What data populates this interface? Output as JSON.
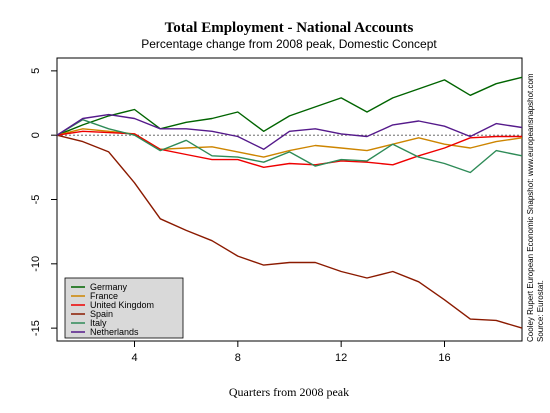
{
  "chart_data": {
    "type": "line",
    "title": "Total Employment - National Accounts",
    "subtitle": "Percentage change from 2008 peak, Domestic Concept",
    "xlabel": "Quarters from 2008 peak",
    "ylabel": "",
    "xlim": [
      1,
      19
    ],
    "ylim": [
      -16,
      6
    ],
    "x_ticks": [
      4,
      8,
      12,
      16
    ],
    "y_ticks": [
      5,
      0,
      -5,
      -10,
      -15
    ],
    "x": [
      1,
      2,
      3,
      4,
      5,
      6,
      7,
      8,
      9,
      10,
      11,
      12,
      13,
      14,
      15,
      16,
      17,
      18,
      19
    ],
    "zero_line": true,
    "legend_position": "bottom-left",
    "side_note": "Cooley Rupert European Economic Snapshot: www.europeansnapshot.com",
    "source_note": "Source: Eurostat.",
    "series": [
      {
        "name": "Germany",
        "color": "#006400",
        "values": [
          0,
          0.8,
          1.5,
          2.0,
          0.5,
          1.0,
          1.3,
          1.8,
          0.3,
          1.5,
          2.2,
          2.9,
          1.8,
          2.9,
          3.6,
          4.3,
          3.1,
          4.0,
          4.5
        ]
      },
      {
        "name": "France",
        "color": "#CD8500",
        "values": [
          0,
          0.5,
          0.3,
          0.1,
          -1.1,
          -1.0,
          -0.9,
          -1.3,
          -1.7,
          -1.2,
          -0.8,
          -1.0,
          -1.2,
          -0.7,
          -0.2,
          -0.7,
          -1.0,
          -0.5,
          -0.2
        ]
      },
      {
        "name": "United Kingdom",
        "color": "#EE0000",
        "values": [
          0,
          0.3,
          0.2,
          0.1,
          -1.1,
          -1.5,
          -1.9,
          -1.9,
          -2.5,
          -2.2,
          -2.3,
          -2.0,
          -2.1,
          -2.3,
          -1.6,
          -1.0,
          -0.2,
          -0.1,
          -0.1
        ]
      },
      {
        "name": "Spain",
        "color": "#8B1A00",
        "values": [
          0,
          -0.5,
          -1.3,
          -3.7,
          -6.5,
          -7.4,
          -8.2,
          -9.4,
          -10.1,
          -9.9,
          -9.9,
          -10.6,
          -11.1,
          -10.6,
          -11.4,
          -12.8,
          -14.3,
          -14.4,
          -15.0
        ]
      },
      {
        "name": "Italy",
        "color": "#2E8B57",
        "values": [
          0,
          1.2,
          0.5,
          0.0,
          -1.2,
          -0.4,
          -1.6,
          -1.7,
          -2.1,
          -1.3,
          -2.4,
          -1.9,
          -2.0,
          -0.7,
          -1.7,
          -2.2,
          -2.9,
          -1.2,
          -1.6
        ]
      },
      {
        "name": "Netherlands",
        "color": "#551A8B",
        "values": [
          0,
          1.3,
          1.6,
          1.3,
          0.5,
          0.5,
          0.3,
          -0.1,
          -1.1,
          0.3,
          0.5,
          0.1,
          -0.1,
          0.8,
          1.1,
          0.7,
          -0.1,
          0.9,
          0.6
        ]
      }
    ]
  }
}
